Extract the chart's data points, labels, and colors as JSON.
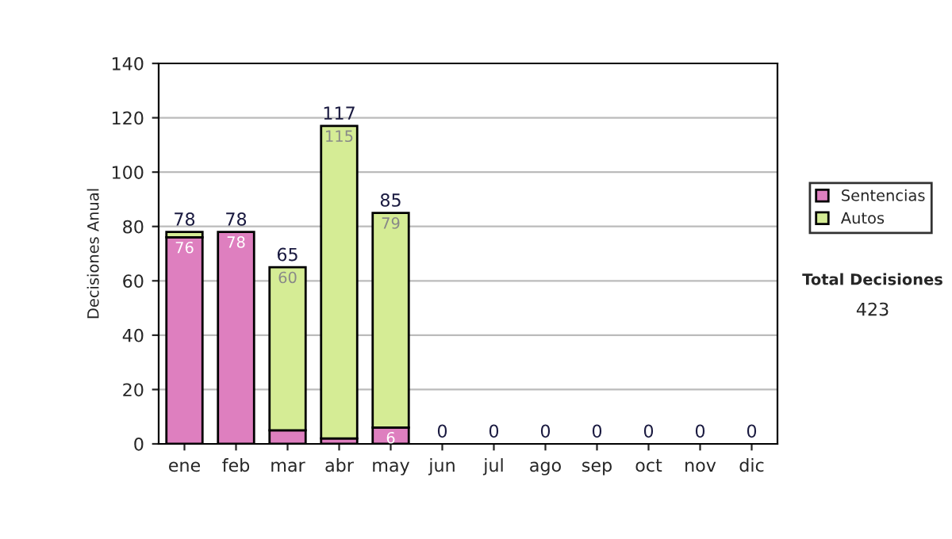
{
  "chart_data": {
    "type": "bar",
    "stacked": true,
    "ylabel": "Decisiones Anual",
    "categories": [
      "ene",
      "feb",
      "mar",
      "abr",
      "may",
      "jun",
      "jul",
      "ago",
      "sep",
      "oct",
      "nov",
      "dic"
    ],
    "series": [
      {
        "name": "Sentencias",
        "color": "#de7fbf",
        "values": [
          76,
          78,
          5,
          2,
          6,
          0,
          0,
          0,
          0,
          0,
          0,
          0
        ],
        "value_labels": [
          "76",
          "78",
          null,
          null,
          "6",
          null,
          null,
          null,
          null,
          null,
          null,
          null
        ]
      },
      {
        "name": "Autos",
        "color": "#d5ec95",
        "values": [
          2,
          0,
          60,
          115,
          79,
          0,
          0,
          0,
          0,
          0,
          0,
          0
        ],
        "value_labels": [
          null,
          null,
          "60",
          "115",
          "79",
          null,
          null,
          null,
          null,
          null,
          null,
          null
        ]
      }
    ],
    "totals": [
      "78",
      "78",
      "65",
      "117",
      "85",
      "0",
      "0",
      "0",
      "0",
      "0",
      "0",
      "0"
    ],
    "ylim": [
      0,
      140
    ],
    "yticks": [
      0,
      20,
      40,
      60,
      80,
      100,
      120,
      140
    ],
    "grid": "y",
    "legend": "right",
    "annotations": [
      "Total Decisiones",
      "423"
    ]
  }
}
